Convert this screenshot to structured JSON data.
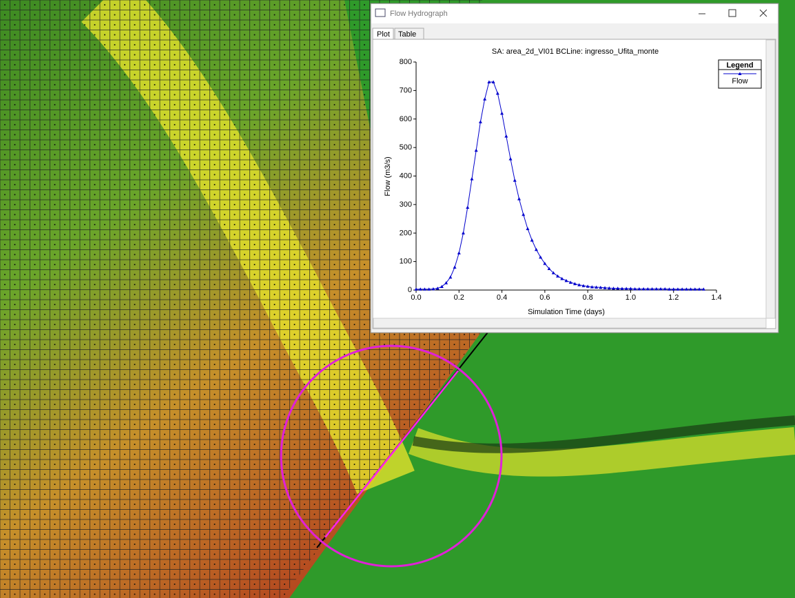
{
  "window": {
    "title": "Flow Hydrograph",
    "tabs": [
      "Plot",
      "Table"
    ]
  },
  "chart_data": {
    "type": "line",
    "title": "SA: area_2d_VI01 BCLine: ingresso_Ufita_monte",
    "x_label": "Simulation Time (days)",
    "y_label": "Flow (m3/s)",
    "legend_title": "Legend",
    "xlim": [
      0,
      1.4
    ],
    "ylim": [
      0,
      800
    ],
    "xticks": [
      {
        "value": 0,
        "label": "0.0"
      },
      0.2,
      0.4,
      0.6,
      0.8,
      {
        "value": 1,
        "label": "1.0"
      },
      1.2,
      1.4
    ],
    "yticks": [
      0,
      100,
      200,
      300,
      400,
      500,
      600,
      700,
      800
    ],
    "x": [
      0,
      0.02,
      0.04,
      0.06,
      0.08,
      0.1,
      0.12,
      0.14,
      0.16,
      0.18,
      0.2,
      0.22,
      0.24,
      0.26,
      0.28,
      0.3,
      0.32,
      0.34,
      0.36,
      0.38,
      0.4,
      0.42,
      0.44,
      0.46,
      0.48,
      0.5,
      0.52,
      0.54,
      0.56,
      0.58,
      0.6,
      0.62,
      0.64,
      0.66,
      0.68,
      0.7,
      0.72,
      0.74,
      0.76,
      0.78,
      0.8,
      0.82,
      0.84,
      0.86,
      0.88,
      0.9,
      0.92,
      0.94,
      0.96,
      0.98,
      1,
      1.02,
      1.04,
      1.06,
      1.08,
      1.1,
      1.12,
      1.14,
      1.16,
      1.18,
      1.2,
      1.22,
      1.24,
      1.26,
      1.28,
      1.3,
      1.32,
      1.34
    ],
    "series": [
      {
        "name": "Flow",
        "color": "#0000cc",
        "values": [
          3,
          3,
          3,
          3,
          4,
          6,
          12,
          25,
          45,
          80,
          130,
          200,
          290,
          390,
          490,
          590,
          670,
          730,
          730,
          690,
          620,
          540,
          460,
          385,
          320,
          265,
          215,
          175,
          142,
          115,
          93,
          75,
          60,
          49,
          40,
          33,
          27,
          22,
          18,
          15,
          13,
          11,
          10,
          9,
          8,
          7,
          6,
          6,
          5,
          5,
          5,
          4,
          4,
          4,
          4,
          4,
          4,
          4,
          4,
          3,
          3,
          3,
          3,
          3,
          3,
          3,
          3,
          3
        ]
      }
    ]
  }
}
